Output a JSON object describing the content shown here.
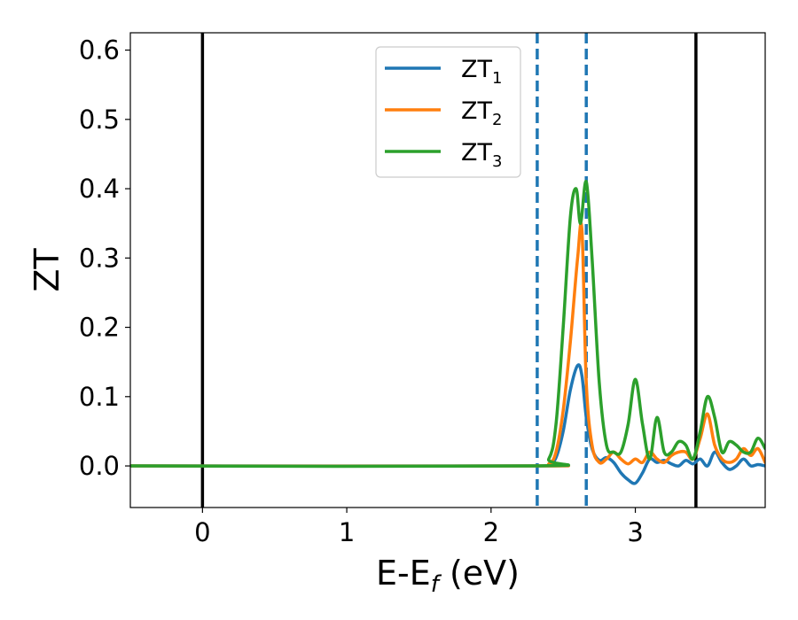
{
  "chart_data": {
    "type": "line",
    "title": "",
    "xlabel": "E-E",
    "xlabel_sub": "f",
    "xlabel_unit": " (eV)",
    "ylabel": "ZT",
    "xlim": [
      -0.5,
      3.9
    ],
    "ylim": [
      -0.06,
      0.625
    ],
    "xticks": [
      0,
      1,
      2,
      3
    ],
    "xtick_labels": [
      "0",
      "1",
      "2",
      "3"
    ],
    "yticks": [
      0.0,
      0.1,
      0.2,
      0.3,
      0.4,
      0.5,
      0.6
    ],
    "ytick_labels": [
      "0.0",
      "0.1",
      "0.2",
      "0.3",
      "0.4",
      "0.5",
      "0.6"
    ],
    "grid": false,
    "legend": {
      "placement": "top-center",
      "entries": [
        {
          "label": "ZT",
          "sub": "1",
          "color": "#1f77b4"
        },
        {
          "label": "ZT",
          "sub": "2",
          "color": "#ff7f0e"
        },
        {
          "label": "ZT",
          "sub": "3",
          "color": "#2ca02c"
        }
      ]
    },
    "vlines": [
      {
        "x": 0.0,
        "style": "solid",
        "color": "#000000"
      },
      {
        "x": 3.42,
        "style": "solid",
        "color": "#000000"
      },
      {
        "x": 2.32,
        "style": "dashed",
        "color": "#1f77b4"
      },
      {
        "x": 2.66,
        "style": "dashed",
        "color": "#1f77b4"
      }
    ],
    "series": [
      {
        "name": "ZT_1",
        "color": "#1f77b4",
        "x": [
          -0.5,
          2.3,
          2.4,
          2.45,
          2.5,
          2.55,
          2.6,
          2.63,
          2.66,
          2.7,
          2.75,
          2.8,
          2.85,
          2.9,
          2.95,
          3.0,
          3.05,
          3.1,
          3.15,
          3.2,
          3.25,
          3.3,
          3.35,
          3.4,
          3.45,
          3.5,
          3.55,
          3.6,
          3.65,
          3.7,
          3.75,
          3.8,
          3.85,
          3.9
        ],
        "y": [
          0.0,
          0.0,
          0.002,
          0.012,
          0.05,
          0.11,
          0.145,
          0.13,
          0.07,
          0.025,
          0.008,
          0.012,
          0.005,
          -0.01,
          -0.02,
          -0.025,
          -0.01,
          0.01,
          0.005,
          0.008,
          0.003,
          0.0,
          0.008,
          0.003,
          0.01,
          0.0,
          0.02,
          0.005,
          -0.005,
          0.0,
          0.01,
          0.0,
          0.002,
          0.0
        ]
      },
      {
        "name": "ZT_2",
        "color": "#ff7f0e",
        "x": [
          -0.5,
          2.3,
          2.4,
          2.45,
          2.5,
          2.55,
          2.6,
          2.63,
          2.66,
          2.7,
          2.75,
          2.8,
          2.85,
          2.9,
          2.95,
          3.0,
          3.05,
          3.1,
          3.15,
          3.2,
          3.25,
          3.3,
          3.35,
          3.4,
          3.45,
          3.5,
          3.55,
          3.6,
          3.65,
          3.7,
          3.75,
          3.8,
          3.85,
          3.9
        ],
        "y": [
          0.0,
          0.0,
          0.003,
          0.02,
          0.08,
          0.18,
          0.3,
          0.34,
          0.12,
          0.03,
          0.005,
          0.01,
          0.02,
          0.01,
          0.003,
          0.01,
          0.005,
          0.02,
          0.01,
          0.005,
          0.015,
          0.02,
          0.02,
          0.01,
          0.04,
          0.075,
          0.03,
          0.01,
          0.005,
          0.01,
          0.025,
          0.015,
          0.025,
          0.005
        ]
      },
      {
        "name": "ZT_3",
        "color": "#2ca02c",
        "x": [
          -0.5,
          2.3,
          2.4,
          2.45,
          2.5,
          2.55,
          2.59,
          2.62,
          2.66,
          2.7,
          2.75,
          2.8,
          2.85,
          2.9,
          2.95,
          3.0,
          3.05,
          3.1,
          3.15,
          3.2,
          3.25,
          3.3,
          3.35,
          3.4,
          3.45,
          3.5,
          3.55,
          3.6,
          3.65,
          3.7,
          3.75,
          3.8,
          3.85,
          3.9
        ],
        "y": [
          0.0,
          0.0,
          0.01,
          0.06,
          0.2,
          0.36,
          0.4,
          0.35,
          0.41,
          0.3,
          0.12,
          0.03,
          0.02,
          0.02,
          0.06,
          0.125,
          0.06,
          0.01,
          0.07,
          0.02,
          0.02,
          0.035,
          0.03,
          0.01,
          0.05,
          0.1,
          0.07,
          0.02,
          0.035,
          0.03,
          0.02,
          0.02,
          0.04,
          0.025
        ]
      }
    ]
  }
}
